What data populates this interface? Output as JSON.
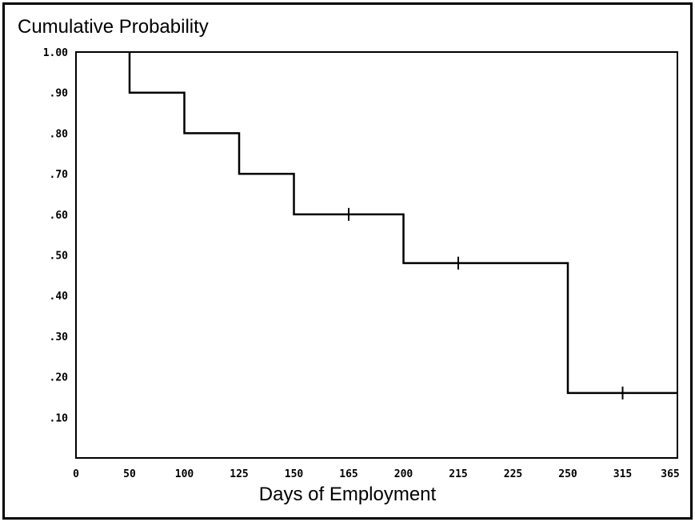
{
  "chart_data": {
    "type": "line",
    "subtype": "step (Kaplan-Meier survival curve)",
    "ylabel": "Cumulative Probability",
    "xlabel": "Days of Employment",
    "x_ticks": [
      "0",
      "50",
      "100",
      "125",
      "150",
      "165",
      "200",
      "215",
      "225",
      "250",
      "315",
      "365"
    ],
    "y_ticks": [
      "1.00",
      ".90",
      ".80",
      ".70",
      ".60",
      ".50",
      ".40",
      ".30",
      ".20",
      ".10"
    ],
    "ylim": [
      0,
      1.0
    ],
    "grid": false,
    "line_color": "#000000",
    "steps": [
      {
        "x_start": "50",
        "x_end": "100",
        "y": 0.9
      },
      {
        "x_start": "100",
        "x_end": "125",
        "y": 0.8
      },
      {
        "x_start": "125",
        "x_end": "150",
        "y": 0.7
      },
      {
        "x_start": "150",
        "x_end": "200",
        "y": 0.6
      },
      {
        "x_start": "200",
        "x_end": "250",
        "y": 0.48
      },
      {
        "x_start": "250",
        "x_end": "365",
        "y": 0.16
      }
    ],
    "start": {
      "x": "50",
      "y": 1.0
    },
    "censored_marks": [
      {
        "x": "165",
        "y": 0.6
      },
      {
        "x": "215",
        "y": 0.48
      },
      {
        "x": "315",
        "y": 0.16
      }
    ]
  }
}
